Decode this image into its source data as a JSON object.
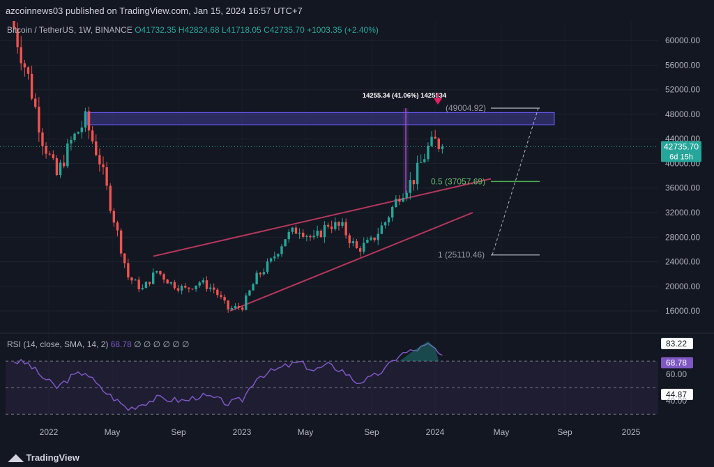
{
  "header": {
    "published": "azcoinnews03 published on TradingView.com, Jan 15, 2024 16:57 UTC+7"
  },
  "legend": {
    "symbol": "Bitcoin / TetherUS, 1W, BINANCE",
    "open": "O41732.35",
    "high": "H42824.68",
    "low": "L41718.05",
    "close": "C42735.70",
    "change": "+1003.35 (+2.40%)"
  },
  "rsi_legend": {
    "label": "RSI (14, close, SMA, 14, 2)",
    "value": "68.78",
    "rest": "∅ ∅ ∅ ∅ ∅ ∅"
  },
  "footer": {
    "brand": "TradingView"
  },
  "colors": {
    "background": "#131722",
    "up": "#26a69a",
    "down": "#ef5350",
    "wedge": "#b5375e",
    "zone": "#5b4fd1",
    "rsi": "#7e57c2"
  },
  "chart_data": {
    "type": "candlestick",
    "x_ticks": [
      "2022",
      "May",
      "Sep",
      "2023",
      "May",
      "Sep",
      "2024",
      "May",
      "Sep",
      "2025"
    ],
    "price_ticks": [
      "60000.00",
      "56000.00",
      "52000.00",
      "48000.00",
      "44000.00",
      "40000.00",
      "36000.00",
      "32000.00",
      "28000.00",
      "24000.00",
      "20000.00",
      "16000.00"
    ],
    "ylim": [
      12600,
      63200
    ],
    "price_path": [
      [
        0,
        62000
      ],
      [
        4,
        54000
      ],
      [
        8,
        44000
      ],
      [
        12,
        38000
      ],
      [
        16,
        43500
      ],
      [
        20,
        47000
      ],
      [
        24,
        40500
      ],
      [
        28,
        31000
      ],
      [
        32,
        21500
      ],
      [
        36,
        19500
      ],
      [
        40,
        22500
      ],
      [
        44,
        20500
      ],
      [
        48,
        19500
      ],
      [
        52,
        20700
      ],
      [
        56,
        19500
      ],
      [
        60,
        16300
      ],
      [
        64,
        16700
      ],
      [
        68,
        21500
      ],
      [
        72,
        24000
      ],
      [
        76,
        28000
      ],
      [
        80,
        29500
      ],
      [
        84,
        27500
      ],
      [
        88,
        30200
      ],
      [
        92,
        29500
      ],
      [
        96,
        26000
      ],
      [
        100,
        27200
      ],
      [
        104,
        30500
      ],
      [
        108,
        35000
      ],
      [
        112,
        37500
      ],
      [
        116,
        42500
      ],
      [
        118,
        43500
      ],
      [
        120,
        42700
      ]
    ],
    "current_price": {
      "value": "42735.70",
      "countdown": "6d 15h"
    },
    "resistance_zone": [
      46300,
      48300
    ],
    "measure_label": "14255.34 (41.06%) 1425534",
    "fib_levels": [
      {
        "label": "(49004.92)",
        "value": 49004.92
      },
      {
        "label": "0.5 (37057.69)",
        "value": 37057.69
      },
      {
        "label": "1 (25110.46)",
        "value": 25110.46
      }
    ],
    "rsi": {
      "levels": [
        "83.22",
        "68.78",
        "60.00",
        "44.87",
        "40.00"
      ],
      "ylim": [
        28,
        90
      ],
      "path": [
        [
          0,
          70
        ],
        [
          4,
          68
        ],
        [
          8,
          58
        ],
        [
          12,
          50
        ],
        [
          16,
          58
        ],
        [
          20,
          62
        ],
        [
          24,
          50
        ],
        [
          28,
          42
        ],
        [
          32,
          34
        ],
        [
          36,
          38
        ],
        [
          40,
          42
        ],
        [
          44,
          41
        ],
        [
          48,
          40
        ],
        [
          52,
          44
        ],
        [
          56,
          42
        ],
        [
          60,
          38
        ],
        [
          64,
          41
        ],
        [
          68,
          58
        ],
        [
          72,
          62
        ],
        [
          76,
          66
        ],
        [
          80,
          69
        ],
        [
          84,
          63
        ],
        [
          88,
          67
        ],
        [
          92,
          63
        ],
        [
          96,
          54
        ],
        [
          100,
          57
        ],
        [
          104,
          64
        ],
        [
          108,
          75
        ],
        [
          112,
          78
        ],
        [
          116,
          82
        ],
        [
          118,
          79
        ],
        [
          120,
          72
        ]
      ]
    }
  }
}
